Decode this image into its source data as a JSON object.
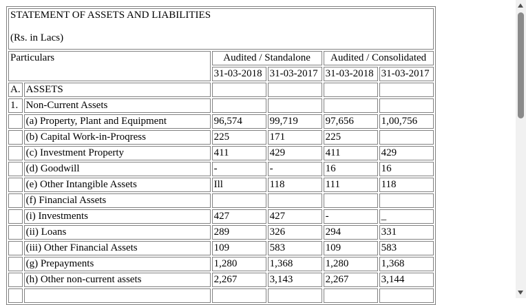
{
  "statement": {
    "title": "STATEMENT OF ASSETS AND LIABILITIES",
    "unit": "(Rs. in Lacs)",
    "particulars_header": "Particulars",
    "group_standalone": "Audited / Standalone",
    "group_consolidated": "Audited / Consolidated",
    "dates": [
      "31-03-2018",
      "31-03-2017",
      "31-03-2018",
      "31-03-2017"
    ]
  },
  "rows": [
    {
      "sno": "A.",
      "label": "ASSETS",
      "v": [
        "",
        "",
        "",
        ""
      ]
    },
    {
      "sno": "1.",
      "label": "Non-Current Assets",
      "v": [
        "",
        "",
        "",
        ""
      ]
    },
    {
      "sno": "",
      "label": "(a) Property, Plant and Equipment",
      "v": [
        "96,574",
        "99,719",
        "97,656",
        "1,00,756"
      ]
    },
    {
      "sno": "",
      "label": "(b) Capital Work-in-Proqress",
      "v": [
        "225",
        "171",
        "225",
        ""
      ]
    },
    {
      "sno": "",
      "label": "(c) Investment Property",
      "v": [
        "411",
        "429",
        "411",
        "429"
      ]
    },
    {
      "sno": "",
      "label": "(d) Goodwill",
      "v": [
        "-",
        "-",
        "16",
        "16"
      ]
    },
    {
      "sno": "",
      "label": "(e) Other Intangible Assets",
      "v": [
        "Ill",
        "118",
        "111",
        "118"
      ]
    },
    {
      "sno": "",
      "label": "(f) Financial Assets",
      "v": [
        "",
        "",
        "",
        ""
      ]
    },
    {
      "sno": "",
      "label": "(i) Investments",
      "v": [
        "427",
        "427",
        "-",
        "_"
      ]
    },
    {
      "sno": "",
      "label": "(ii) Loans",
      "v": [
        "289",
        "326",
        "294",
        "331"
      ]
    },
    {
      "sno": "",
      "label": "(iii) Other Financial Assets",
      "v": [
        "109",
        "583",
        "109",
        "583"
      ]
    },
    {
      "sno": "",
      "label": "(g) Prepayments",
      "v": [
        "1,280",
        "1,368",
        "1,280",
        "1,368"
      ]
    },
    {
      "sno": "",
      "label": "(h) Other non-current assets",
      "v": [
        "2,267",
        "3,143",
        "2,267",
        "3,144"
      ]
    },
    {
      "sno": "",
      "label": "",
      "v": [
        "",
        "",
        "",
        ""
      ]
    }
  ]
}
